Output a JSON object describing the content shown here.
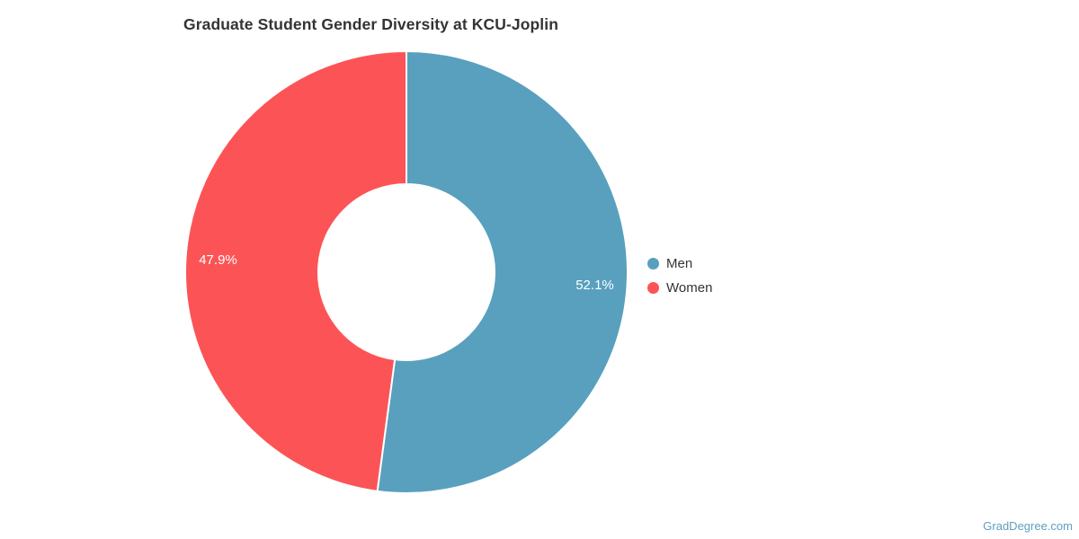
{
  "title": "Graduate Student Gender Diversity at KCU-Joplin",
  "watermark": "GradDegree.com",
  "colors": {
    "men": "#58a0be",
    "women": "#fc5456",
    "title_text": "#333333",
    "legend_text": "#333333",
    "slice_label_text": "#ffffff",
    "watermark_text": "#5c9fc1",
    "background": "#ffffff",
    "slice_separator": "#ffffff"
  },
  "chart_data": {
    "type": "pie",
    "donut": true,
    "title": "Graduate Student Gender Diversity at KCU-Joplin",
    "categories": [
      "Men",
      "Women"
    ],
    "values": [
      52.1,
      47.9
    ],
    "labels": [
      "52.1%",
      "47.9%"
    ],
    "colors": [
      "#58a0be",
      "#fc5456"
    ],
    "start_angle_deg": 0,
    "direction": "clockwise",
    "inner_radius_ratio": 0.4,
    "legend_position": "right"
  },
  "legend": {
    "items": [
      {
        "label": "Men",
        "color": "#58a0be"
      },
      {
        "label": "Women",
        "color": "#fc5456"
      }
    ]
  }
}
